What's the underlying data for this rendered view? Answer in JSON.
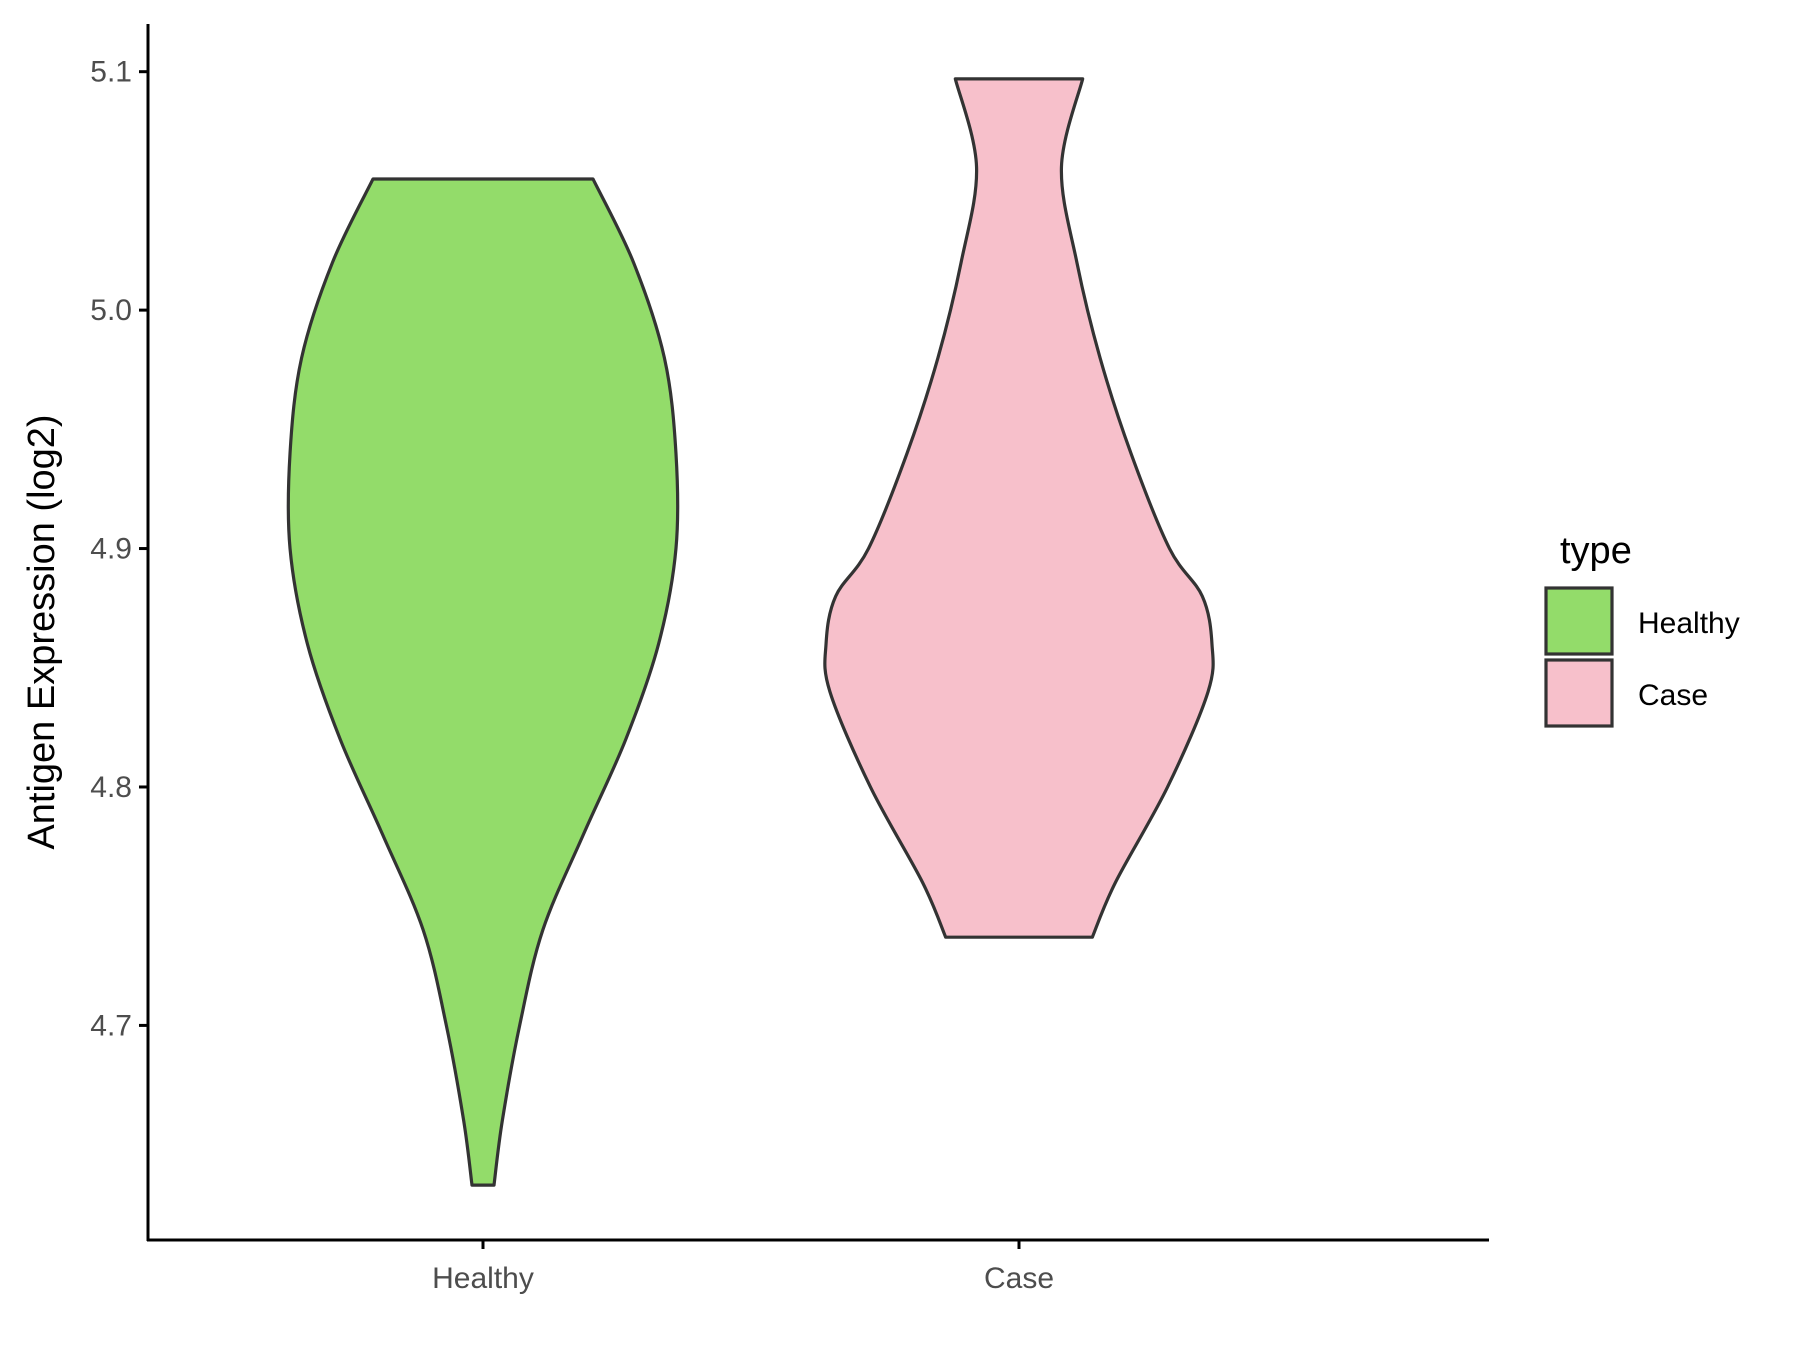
{
  "chart_data": {
    "type": "violin",
    "title": "",
    "xlabel": "",
    "ylabel": "Antigen Expression (log2)",
    "ylim": [
      4.61,
      5.12
    ],
    "yticks": [
      "4.7",
      "4.8",
      "4.9",
      "5.0",
      "5.1"
    ],
    "categories": [
      "Healthy",
      "Case"
    ],
    "grid": false,
    "legend": {
      "title": "type",
      "position": "right",
      "entries": [
        "Healthy",
        "Case"
      ]
    },
    "series": [
      {
        "name": "Healthy",
        "color": "#93DC6A",
        "min": 4.633,
        "max": 5.055,
        "density": [
          [
            4.633,
            0.057
          ],
          [
            4.66,
            0.1
          ],
          [
            4.7,
            0.19
          ],
          [
            4.74,
            0.31
          ],
          [
            4.78,
            0.52
          ],
          [
            4.82,
            0.74
          ],
          [
            4.86,
            0.91
          ],
          [
            4.9,
            1.0
          ],
          [
            4.94,
            1.0
          ],
          [
            4.98,
            0.94
          ],
          [
            5.02,
            0.78
          ],
          [
            5.055,
            0.57
          ]
        ]
      },
      {
        "name": "Case",
        "color": "#F7C0CB",
        "min": 4.737,
        "max": 5.097,
        "density": [
          [
            4.737,
            0.38
          ],
          [
            4.76,
            0.5
          ],
          [
            4.8,
            0.77
          ],
          [
            4.84,
            0.98
          ],
          [
            4.86,
            1.0
          ],
          [
            4.88,
            0.95
          ],
          [
            4.9,
            0.78
          ],
          [
            4.94,
            0.58
          ],
          [
            4.98,
            0.42
          ],
          [
            5.02,
            0.3
          ],
          [
            5.06,
            0.22
          ],
          [
            5.097,
            0.33
          ]
        ]
      }
    ]
  }
}
